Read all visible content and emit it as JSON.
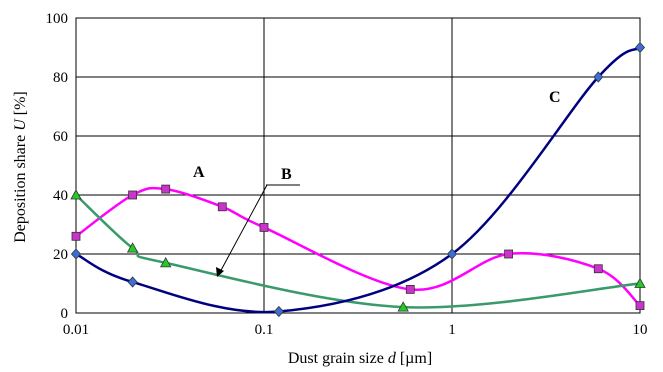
{
  "chart_data": {
    "type": "line",
    "xscale": "log",
    "xlim": [
      0.01,
      10
    ],
    "ylim": [
      0,
      100
    ],
    "xticks": [
      0.01,
      0.1,
      1,
      10
    ],
    "xtick_labels": [
      "0.01",
      "0.1",
      "1",
      "10"
    ],
    "yticks": [
      0,
      20,
      40,
      60,
      80,
      100
    ],
    "ytick_labels": [
      "0",
      "20",
      "40",
      "60",
      "80",
      "100"
    ],
    "grid": true,
    "xlabel": {
      "pre": "Dust grain size ",
      "var": "d",
      "post": "  [µm]"
    },
    "ylabel": {
      "pre": "Deposition share ",
      "var": "U",
      "post": " [%]"
    },
    "series": [
      {
        "name": "A",
        "color": "#ff00ff",
        "marker_fill": "#cc33cc",
        "marker": "square",
        "x": [
          0.01,
          0.02,
          0.03,
          0.06,
          0.1,
          0.6,
          2,
          6,
          10
        ],
        "y": [
          26,
          40,
          42,
          36,
          29,
          8,
          20,
          15,
          2.5
        ]
      },
      {
        "name": "B",
        "color": "#3a9a6a",
        "marker_fill": "#22cc22",
        "marker": "triangle",
        "x": [
          0.01,
          0.02,
          0.03,
          0.55,
          10
        ],
        "y": [
          40,
          22,
          17,
          2,
          10
        ]
      },
      {
        "name": "C",
        "color": "#000080",
        "marker_fill": "#3a6fd8",
        "marker": "diamond",
        "x": [
          0.01,
          0.02,
          0.12,
          1,
          6,
          10
        ],
        "y": [
          20,
          10.5,
          0.5,
          20,
          80,
          90
        ]
      }
    ]
  }
}
